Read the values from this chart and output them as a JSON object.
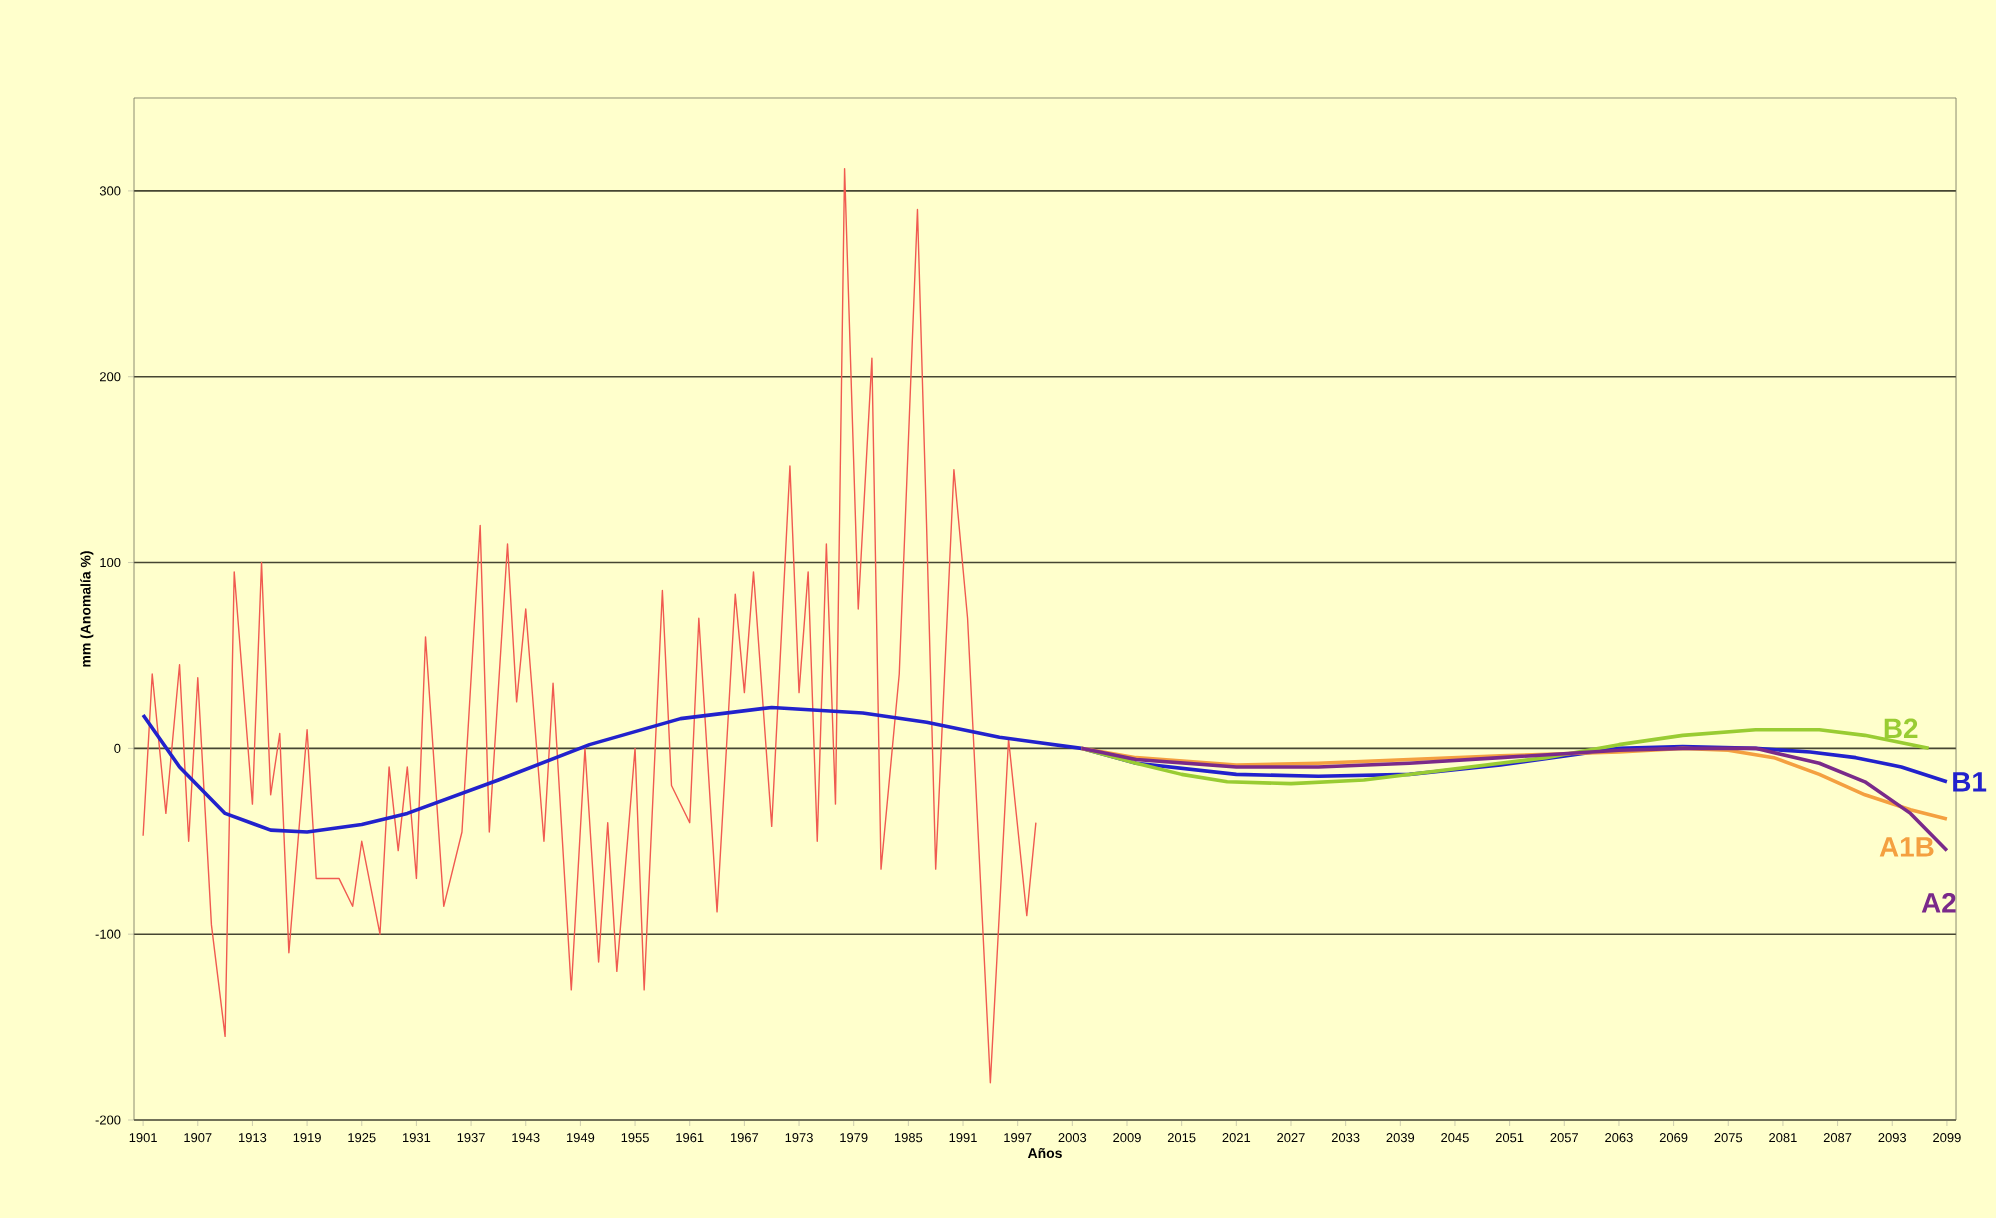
{
  "chart_data": {
    "type": "line",
    "xlabel": "Años",
    "ylabel": "mm (Anomalía %)",
    "xlim": [
      1900,
      2100
    ],
    "ylim": [
      -200,
      350
    ],
    "xticks": [
      1901,
      1907,
      1913,
      1919,
      1925,
      1931,
      1937,
      1943,
      1949,
      1955,
      1961,
      1967,
      1973,
      1979,
      1985,
      1991,
      1997,
      2003,
      2009,
      2015,
      2021,
      2027,
      2033,
      2039,
      2045,
      2051,
      2057,
      2063,
      2069,
      2075,
      2081,
      2087,
      2093,
      2099
    ],
    "yticks": [
      -200,
      -100,
      0,
      100,
      200,
      300
    ],
    "grid": "y",
    "marker": "none",
    "series": [
      {
        "color": "#f05a50",
        "x": [
          1901,
          1902,
          1903.5,
          1905,
          1906,
          1907,
          1908.5,
          1910,
          1911,
          1913,
          1914,
          1915,
          1916,
          1917,
          1919,
          1920,
          1922.5,
          1924,
          1925,
          1927,
          1928,
          1929,
          1930,
          1931,
          1932,
          1934,
          1936,
          1938,
          1939,
          1941,
          1942,
          1943,
          1945,
          1946,
          1948,
          1949.5,
          1951,
          1952,
          1953,
          1955,
          1956,
          1958,
          1959,
          1961,
          1962,
          1964,
          1966,
          1967,
          1968,
          1970,
          1972,
          1973,
          1974,
          1975,
          1976,
          1977,
          1978,
          1979.5,
          1981,
          1982,
          1984,
          1986,
          1987,
          1988,
          1990,
          1991.5,
          1994,
          1996,
          1998,
          1999
        ],
        "values": [
          -47,
          40,
          -35,
          45,
          -50,
          38,
          -95,
          -155,
          95,
          -30,
          100,
          -25,
          8,
          -110,
          10,
          -70,
          -70,
          -85,
          -50,
          -100,
          -10,
          -55,
          -10,
          -70,
          60,
          -85,
          -45,
          120,
          -45,
          110,
          25,
          75,
          -50,
          35,
          -130,
          0,
          -115,
          -40,
          -120,
          0,
          -130,
          85,
          -20,
          -40,
          70,
          -88,
          83,
          30,
          95,
          -42,
          152,
          30,
          95,
          -50,
          110,
          -30,
          312,
          75,
          210,
          -65,
          40,
          290,
          120,
          -65,
          150,
          70,
          -180,
          5,
          -90,
          -40
        ]
      },
      {
        "name": "B1",
        "color": "#2222cc",
        "x": [
          1901,
          1905,
          1910,
          1915,
          1919,
          1925,
          1930,
          1940,
          1950,
          1960,
          1970,
          1980,
          1987,
          1995,
          2004,
          2010,
          2021,
          2030,
          2040,
          2050,
          2063,
          2070,
          2078,
          2084,
          2089,
          2094,
          2099
        ],
        "values": [
          18,
          -10,
          -35,
          -44,
          -45,
          -41,
          -35,
          -17,
          2,
          16,
          22,
          19,
          14,
          6,
          0,
          -8,
          -14,
          -15,
          -14,
          -9,
          0,
          1,
          0,
          -2,
          -5,
          -10,
          -18
        ]
      },
      {
        "name": "B2",
        "color": "#99cc33",
        "x": [
          2004,
          2010,
          2015,
          2020,
          2027,
          2035,
          2045,
          2055,
          2063,
          2070,
          2078,
          2085,
          2090,
          2097
        ],
        "values": [
          0,
          -8,
          -14,
          -18,
          -19,
          -17,
          -11,
          -5,
          2,
          7,
          10,
          10,
          7,
          0
        ]
      },
      {
        "name": "A1B",
        "color": "#f4a040",
        "x": [
          2004,
          2010,
          2021,
          2030,
          2040,
          2050,
          2063,
          2070,
          2075,
          2080,
          2085,
          2090,
          2095,
          2099
        ],
        "values": [
          0,
          -5,
          -9,
          -8,
          -6,
          -4,
          -2,
          0,
          -1,
          -5,
          -14,
          -25,
          -33,
          -38
        ]
      },
      {
        "name": "A2",
        "color": "#7a2a8a",
        "x": [
          2004,
          2010,
          2021,
          2030,
          2040,
          2050,
          2063,
          2070,
          2078,
          2085,
          2090,
          2095,
          2099
        ],
        "values": [
          0,
          -6,
          -10,
          -10,
          -8,
          -5,
          -1,
          0,
          0,
          -8,
          -18,
          -35,
          -55
        ]
      }
    ]
  }
}
